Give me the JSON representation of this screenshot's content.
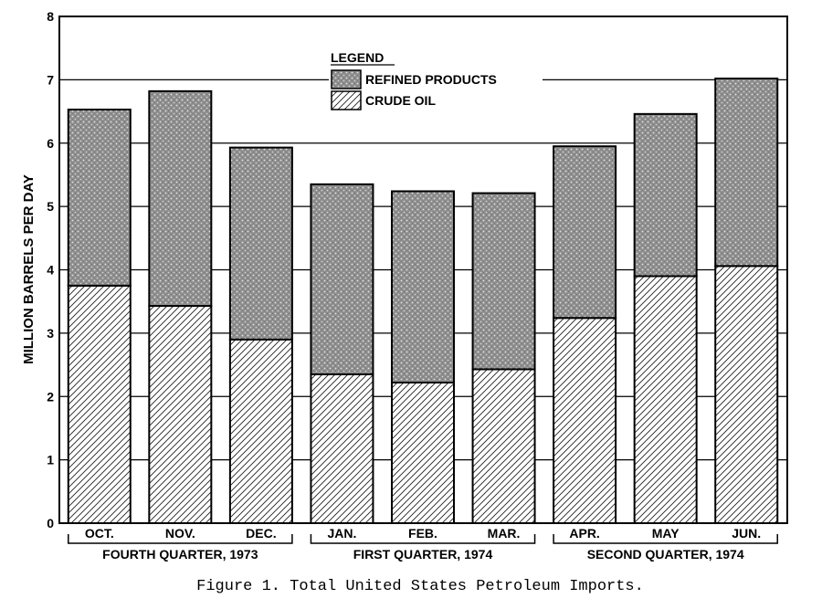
{
  "chart_data": {
    "type": "bar",
    "stacked": true,
    "ylabel": "MILLION BARRELS PER DAY",
    "ylim": [
      0,
      8
    ],
    "yticks": [
      "0",
      "1",
      "2",
      "3",
      "4",
      "5",
      "6",
      "7",
      "8"
    ],
    "grid": true,
    "categories": [
      "OCT.",
      "NOV.",
      "DEC.",
      "JAN.",
      "FEB.",
      "MAR.",
      "APR.",
      "MAY",
      "JUN."
    ],
    "groups": [
      {
        "label": "FOURTH QUARTER, 1973"
      },
      {
        "label": "FIRST QUARTER, 1974"
      },
      {
        "label": "SECOND QUARTER, 1974"
      }
    ],
    "legend": {
      "title": "LEGEND",
      "position": "top-center"
    },
    "series": [
      {
        "name": "CRUDE OIL",
        "pattern": "hatch",
        "values": [
          3.75,
          3.43,
          2.9,
          2.35,
          2.22,
          2.43,
          3.24,
          3.9,
          4.06
        ]
      },
      {
        "name": "REFINED PRODUCTS",
        "pattern": "stipple",
        "values": [
          2.78,
          3.39,
          3.03,
          3.0,
          3.02,
          2.78,
          2.71,
          2.56,
          2.96
        ]
      }
    ]
  },
  "caption": "Figure 1.  Total United States Petroleum Imports."
}
